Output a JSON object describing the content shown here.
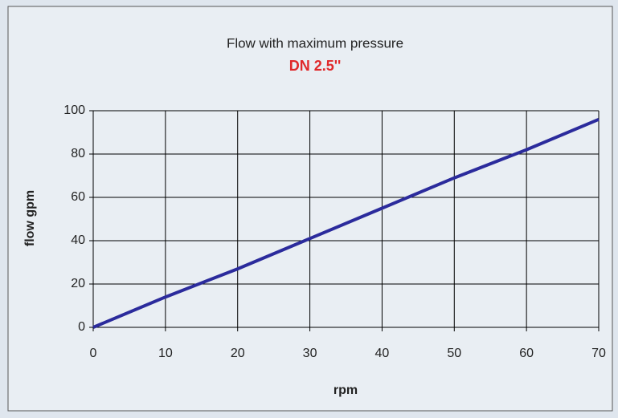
{
  "chart_data": {
    "type": "line",
    "title": "Flow with maximum pressure",
    "subtitle": "DN 2.5''",
    "xlabel": "rpm",
    "ylabel": "flow gpm",
    "x": [
      0,
      10,
      20,
      30,
      40,
      50,
      60,
      70
    ],
    "values": [
      0,
      14,
      27,
      41,
      55,
      69,
      82,
      96
    ],
    "color": "#2b2b9c",
    "xlim": [
      0,
      70
    ],
    "xticks": [
      0,
      10,
      20,
      30,
      40,
      50,
      60,
      70
    ],
    "ylim": [
      0,
      100
    ],
    "yticks": [
      0,
      20,
      40,
      60,
      80,
      100
    ],
    "grid": true
  }
}
